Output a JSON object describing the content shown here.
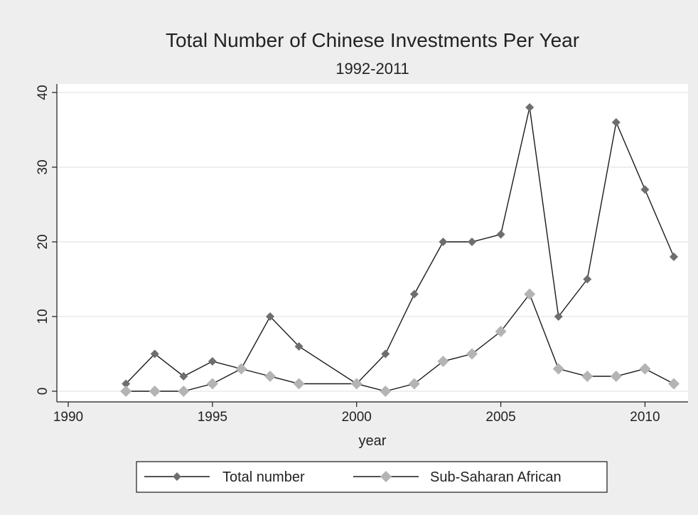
{
  "colors": {
    "page_background": "#eeeeee",
    "plot_background": "#ffffff",
    "grid": "#e6ebeb",
    "line": "#1a1a1a",
    "total_marker": "#6e6e6e",
    "ssa_marker": "#b4b4b4"
  },
  "chart_data": {
    "type": "line",
    "title": "Total Number of Chinese Investments Per Year",
    "subtitle": "1992-2011",
    "xlabel": "year",
    "ylabel": "",
    "xlim": [
      1990,
      2011
    ],
    "ylim": [
      0,
      40
    ],
    "x_ticks": [
      1990,
      1995,
      2000,
      2005,
      2010
    ],
    "x_tick_labels": [
      "1990",
      "1995",
      "2000",
      "2005",
      "2010"
    ],
    "y_ticks": [
      0,
      10,
      20,
      30,
      40
    ],
    "y_tick_labels": [
      "0",
      "10",
      "20",
      "30",
      "40"
    ],
    "grid": true,
    "legend_position": "bottom",
    "x": [
      1992,
      1993,
      1994,
      1995,
      1996,
      1997,
      1998,
      1999,
      2000,
      2001,
      2002,
      2003,
      2004,
      2005,
      2006,
      2007,
      2008,
      2009,
      2010,
      2011
    ],
    "series": [
      {
        "name": "Total number",
        "marker": "diamond-small",
        "values": [
          1,
          5,
          2,
          4,
          3,
          10,
          6,
          null,
          1,
          5,
          13,
          20,
          20,
          21,
          38,
          10,
          15,
          36,
          27,
          18
        ]
      },
      {
        "name": "Sub-Saharan African",
        "marker": "diamond-large",
        "values": [
          0,
          0,
          0,
          1,
          3,
          2,
          1,
          null,
          1,
          0,
          1,
          4,
          5,
          8,
          13,
          3,
          2,
          2,
          3,
          1
        ]
      }
    ]
  }
}
